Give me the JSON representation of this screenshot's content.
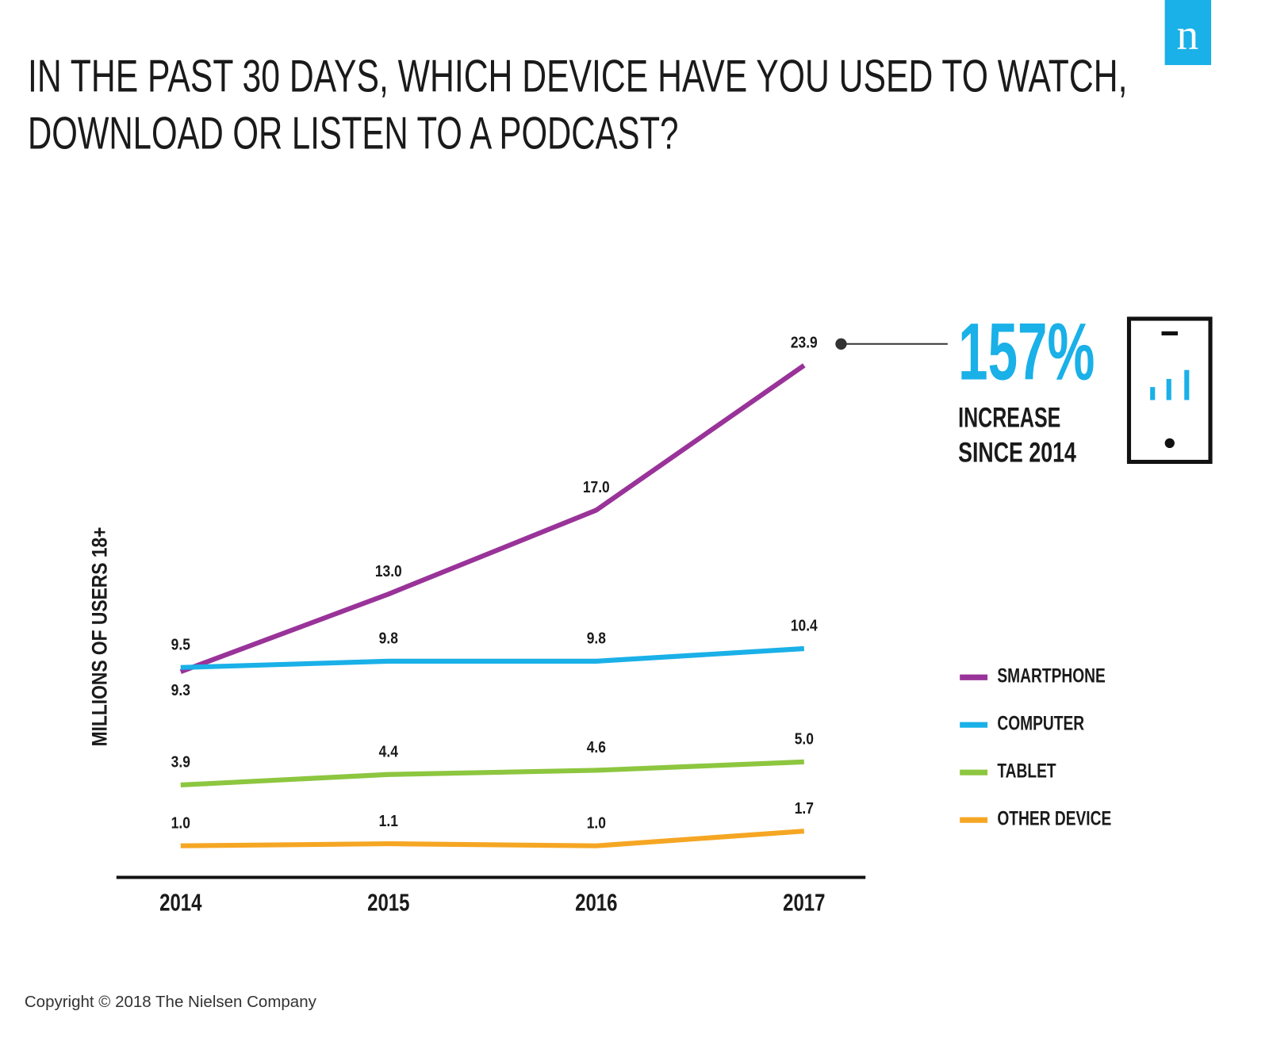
{
  "chart_data": {
    "type": "line",
    "title": [
      "IN THE PAST 30 DAYS, WHICH DEVICE HAVE YOU USED TO WATCH,",
      "DOWNLOAD OR LISTEN TO A PODCAST?"
    ],
    "y_label": "MILLIONS OF USERS 18+",
    "categories": [
      "2014",
      "2015",
      "2016",
      "2017"
    ],
    "series": [
      {
        "name": "SMARTPHONE",
        "color": "#993399",
        "values": [
          9.3,
          13.0,
          17.0,
          23.9
        ],
        "value_labels": [
          "9.3",
          "13.0",
          "17.0",
          "23.9"
        ]
      },
      {
        "name": "COMPUTER",
        "color": "#1ab0e8",
        "values": [
          9.5,
          9.8,
          9.8,
          10.4
        ]
      },
      {
        "name": "TABLET",
        "color": "#8dc63f",
        "values": [
          3.9,
          4.4,
          4.6,
          5.0
        ],
        "value_labels": [
          "3.9",
          "4.4",
          "4.6",
          "5.0"
        ]
      },
      {
        "name": "OTHER DEVICE",
        "color": "#f5a623",
        "values": [
          1.0,
          1.1,
          1.0,
          1.7
        ],
        "value_labels": [
          "1.0",
          "1.1",
          "1.0",
          "1.7"
        ]
      }
    ],
    "ylim": [
      0,
      25
    ],
    "annotation": {
      "value": "157%",
      "text": [
        "INCREASE",
        "SINCE 2014"
      ]
    },
    "logo": "n",
    "footer": "Copyright © 2018 The Nielsen Company"
  }
}
